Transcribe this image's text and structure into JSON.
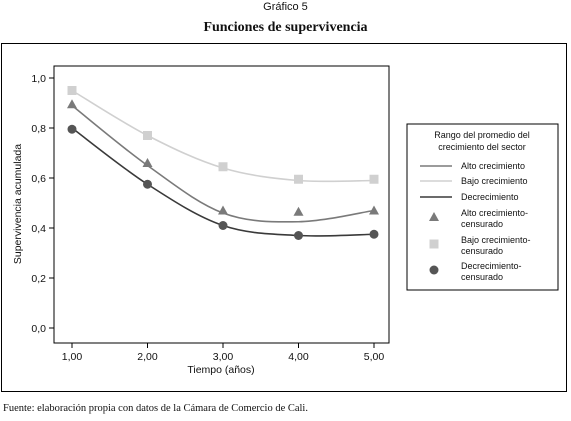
{
  "figure_label": "Gráfico 5",
  "title": "Funciones de supervivencia",
  "source": "Fuente: elaboración propia con datos de la Cámara de Comercio de Cali.",
  "chart_data": {
    "type": "line",
    "title": "Funciones de supervivencia",
    "xlabel": "Tiempo (años)",
    "ylabel": "Supervivencia acumulada",
    "xlim": [
      1.0,
      5.0
    ],
    "ylim": [
      0.0,
      1.0
    ],
    "x_ticks": [
      "1,00",
      "2,00",
      "3,00",
      "4,00",
      "5,00"
    ],
    "y_ticks": [
      "0,0",
      "0,2",
      "0,4",
      "0,6",
      "0,8",
      "1,0"
    ],
    "grid": false,
    "legend_position": "right",
    "legend_title": "Rango del promedio del crecimiento del sector",
    "x": [
      1,
      2,
      3,
      4,
      5
    ],
    "series": [
      {
        "name": "Alto crecimiento",
        "kind": "line",
        "color": "#7a7a7a",
        "values": [
          0.89,
          0.65,
          0.46,
          0.425,
          0.47
        ]
      },
      {
        "name": "Bajo crecimiento",
        "kind": "line",
        "color": "#d0d0d0",
        "values": [
          0.95,
          0.77,
          0.64,
          0.59,
          0.59
        ]
      },
      {
        "name": "Decrecimiento",
        "kind": "line",
        "color": "#3a3a3a",
        "values": [
          0.8,
          0.575,
          0.41,
          0.37,
          0.375
        ]
      },
      {
        "name": "Alto crecimiento-censurado",
        "kind": "marker",
        "marker": "triangle",
        "color": "#7a7a7a",
        "values": [
          0.895,
          0.66,
          0.47,
          0.465,
          0.47
        ]
      },
      {
        "name": "Bajo crecimiento-censurado",
        "kind": "marker",
        "marker": "square",
        "color": "#d0d0d0",
        "values": [
          0.95,
          0.77,
          0.645,
          0.595,
          0.595
        ]
      },
      {
        "name": "Decrecimiento-censurado",
        "kind": "marker",
        "marker": "circle",
        "color": "#555555",
        "values": [
          0.795,
          0.575,
          0.41,
          0.37,
          0.375
        ]
      }
    ]
  }
}
